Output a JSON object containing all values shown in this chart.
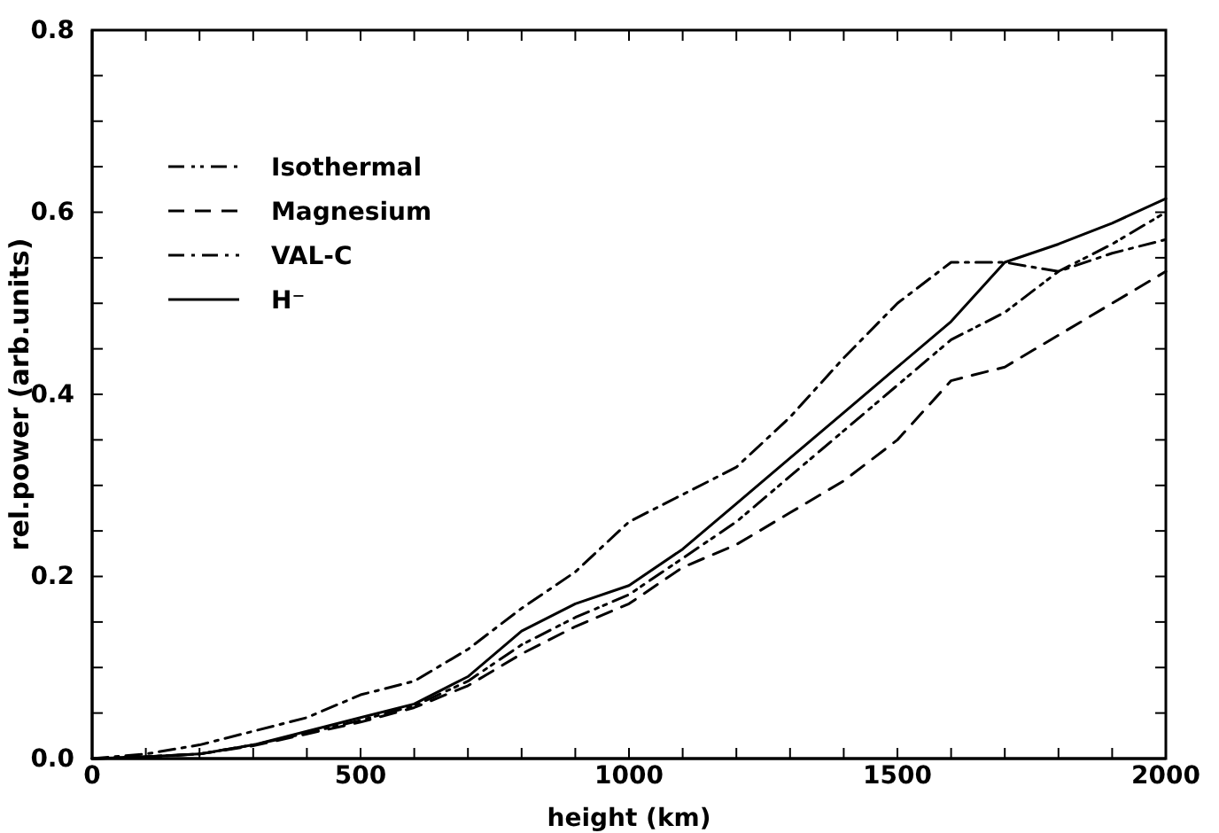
{
  "chart_data": {
    "type": "line",
    "xlabel": "height (km)",
    "ylabel": "rel.power (arb.units)",
    "x": [
      0,
      100,
      200,
      300,
      400,
      500,
      600,
      700,
      800,
      900,
      1000,
      1100,
      1200,
      1300,
      1400,
      1500,
      1600,
      1700,
      1800,
      1900,
      2000
    ],
    "xlim": [
      0,
      2000
    ],
    "xticks": [
      0,
      {
        "value": 100,
        "label": null
      },
      {
        "value": 200,
        "label": null
      },
      {
        "value": 300,
        "label": null
      },
      {
        "value": 400,
        "label": null
      },
      500,
      {
        "value": 600,
        "label": null
      },
      {
        "value": 700,
        "label": null
      },
      {
        "value": 800,
        "label": null
      },
      {
        "value": 900,
        "label": null
      },
      1000,
      {
        "value": 1100,
        "label": null
      },
      {
        "value": 1200,
        "label": null
      },
      {
        "value": 1300,
        "label": null
      },
      {
        "value": 1400,
        "label": null
      },
      1500,
      {
        "value": 1600,
        "label": null
      },
      {
        "value": 1700,
        "label": null
      },
      {
        "value": 1800,
        "label": null
      },
      {
        "value": 1900,
        "label": null
      },
      2000
    ],
    "ylim": [
      0,
      0.8
    ],
    "yticks": [
      {
        "value": 0,
        "label": "0.0"
      },
      {
        "value": 0.05,
        "label": null
      },
      {
        "value": 0.1,
        "label": null
      },
      {
        "value": 0.15,
        "label": null
      },
      0.2,
      {
        "value": 0.25,
        "label": null
      },
      {
        "value": 0.3,
        "label": null
      },
      {
        "value": 0.35,
        "label": null
      },
      0.4,
      {
        "value": 0.45,
        "label": null
      },
      {
        "value": 0.5,
        "label": null
      },
      {
        "value": 0.55,
        "label": null
      },
      0.6,
      {
        "value": 0.65,
        "label": null
      },
      {
        "value": 0.7,
        "label": null
      },
      {
        "value": 0.75,
        "label": null
      },
      0.8
    ],
    "grid": false,
    "legend": "top left",
    "marker": "none",
    "series": [
      {
        "name": "Isothermal",
        "color": "#000000",
        "line_style": "dashdotdot",
        "values": [
          0,
          0.002,
          0.005,
          0.015,
          0.028,
          0.042,
          0.058,
          0.085,
          0.125,
          0.155,
          0.18,
          0.22,
          0.26,
          0.31,
          0.36,
          0.41,
          0.46,
          0.49,
          0.535,
          0.565,
          0.6
        ]
      },
      {
        "name": "Magnesium",
        "color": "#000000",
        "line_style": "dashed",
        "values": [
          0,
          0.002,
          0.005,
          0.014,
          0.027,
          0.04,
          0.056,
          0.08,
          0.115,
          0.145,
          0.17,
          0.21,
          0.235,
          0.27,
          0.305,
          0.35,
          0.415,
          0.43,
          0.465,
          0.5,
          0.535
        ]
      },
      {
        "name": "VAL-C",
        "color": "#000000",
        "line_style": "dashdot",
        "values": [
          0,
          0.005,
          0.015,
          0.03,
          0.045,
          0.07,
          0.085,
          0.12,
          0.165,
          0.205,
          0.26,
          0.29,
          0.32,
          0.375,
          0.44,
          0.5,
          0.545,
          0.545,
          0.535,
          0.555,
          0.57
        ]
      },
      {
        "name": "H⁻",
        "color": "#000000",
        "line_style": "solid",
        "values": [
          0,
          0.002,
          0.005,
          0.015,
          0.03,
          0.045,
          0.06,
          0.09,
          0.14,
          0.17,
          0.19,
          0.23,
          0.28,
          0.33,
          0.38,
          0.43,
          0.48,
          0.545,
          0.565,
          0.588,
          0.615
        ]
      }
    ]
  }
}
